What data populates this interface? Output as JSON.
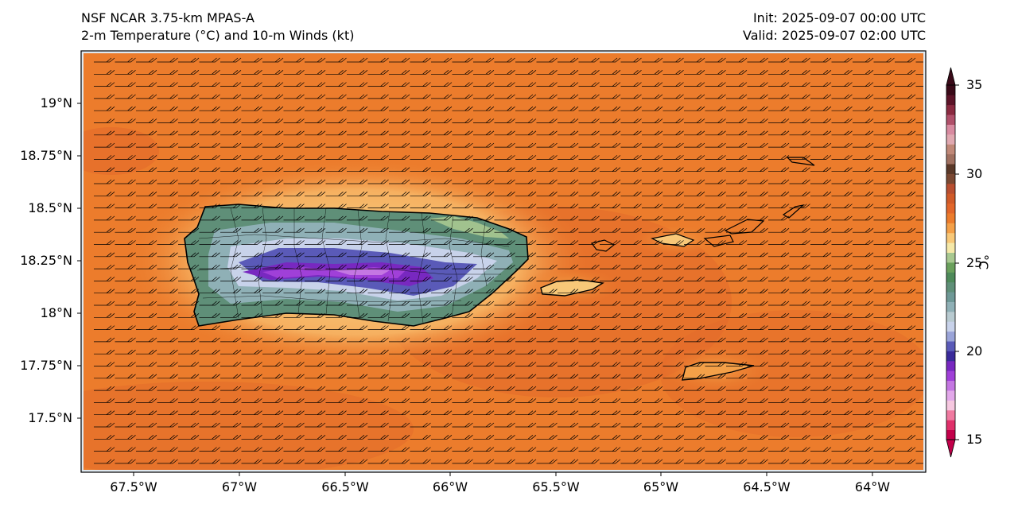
{
  "header": {
    "title_line1": "NSF NCAR 3.75-km MPAS-A",
    "title_line2": "2-m Temperature (°C) and 10-m Winds (kt)",
    "init": "Init: 2025-09-07 00:00 UTC",
    "valid": "Valid: 2025-09-07 02:00 UTC"
  },
  "map": {
    "latitude_labels": [
      "19°N",
      "18.75°N",
      "18.5°N",
      "18.25°N",
      "18°N",
      "17.75°N",
      "17.5°N"
    ],
    "longitude_labels": [
      "67.5°W",
      "67°W",
      "66.5°W",
      "66°W",
      "65.5°W",
      "65°W",
      "64.5°W",
      "64°W"
    ],
    "background_temperature_c": 29,
    "wind_description": "easterly barbs across domain"
  },
  "colorbar": {
    "unit": "°C",
    "tick_labels": [
      "35",
      "30",
      "25",
      "20",
      "15"
    ],
    "min": 15,
    "max": 35,
    "colors": [
      "#c2004a",
      "#e0306a",
      "#f07aa0",
      "#f6c8e0",
      "#e2a8ea",
      "#c477e2",
      "#a040d8",
      "#7828c0",
      "#3a2a9a",
      "#5a5ab8",
      "#9aa4d8",
      "#c8d2ea",
      "#b8cad0",
      "#8fb0b6",
      "#6e9896",
      "#5f8f78",
      "#4e8a5a",
      "#6aa05c",
      "#a8c890",
      "#f5e8a8",
      "#f8c878",
      "#f4a048",
      "#ec7c2c",
      "#e2662a",
      "#d05a28",
      "#b84e30",
      "#7a4832",
      "#5a3828",
      "#a07060",
      "#c08878",
      "#e0a8b0",
      "#d88aa0",
      "#b0506a",
      "#8a2a40",
      "#5c1428",
      "#3a0a18"
    ]
  }
}
